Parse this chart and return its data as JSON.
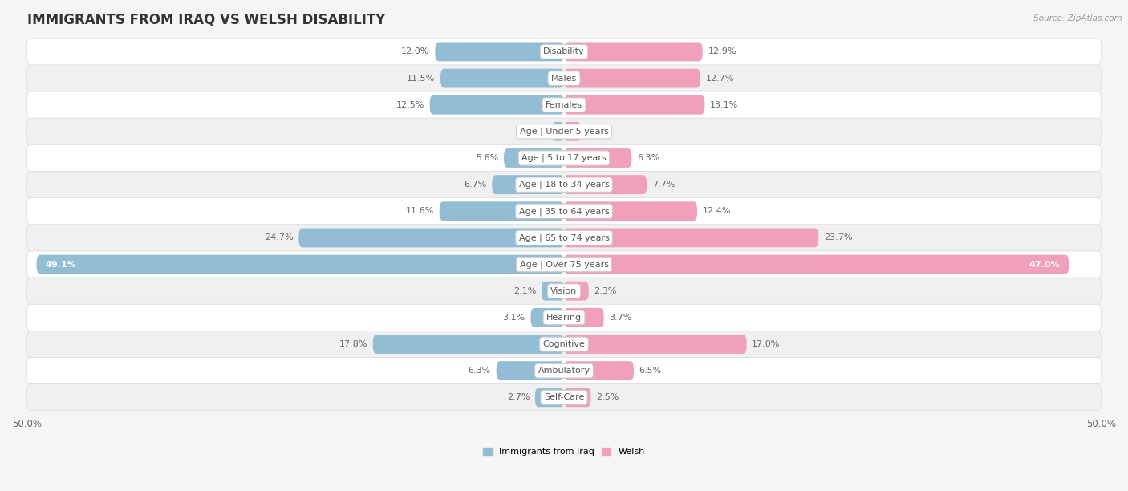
{
  "title": "IMMIGRANTS FROM IRAQ VS WELSH DISABILITY",
  "source": "Source: ZipAtlas.com",
  "categories": [
    "Disability",
    "Males",
    "Females",
    "Age | Under 5 years",
    "Age | 5 to 17 years",
    "Age | 18 to 34 years",
    "Age | 35 to 64 years",
    "Age | 65 to 74 years",
    "Age | Over 75 years",
    "Vision",
    "Hearing",
    "Cognitive",
    "Ambulatory",
    "Self-Care"
  ],
  "iraq_values": [
    12.0,
    11.5,
    12.5,
    1.1,
    5.6,
    6.7,
    11.6,
    24.7,
    49.1,
    2.1,
    3.1,
    17.8,
    6.3,
    2.7
  ],
  "welsh_values": [
    12.9,
    12.7,
    13.1,
    1.6,
    6.3,
    7.7,
    12.4,
    23.7,
    47.0,
    2.3,
    3.7,
    17.0,
    6.5,
    2.5
  ],
  "iraq_color": "#93bdd4",
  "welsh_color": "#f0a0b8",
  "iraq_label": "Immigrants from Iraq",
  "welsh_label": "Welsh",
  "axis_max": 50.0,
  "row_bg_odd": "#f0f0f0",
  "row_bg_even": "#ffffff",
  "title_fontsize": 12,
  "label_fontsize": 8,
  "value_fontsize": 8,
  "tick_fontsize": 8.5
}
